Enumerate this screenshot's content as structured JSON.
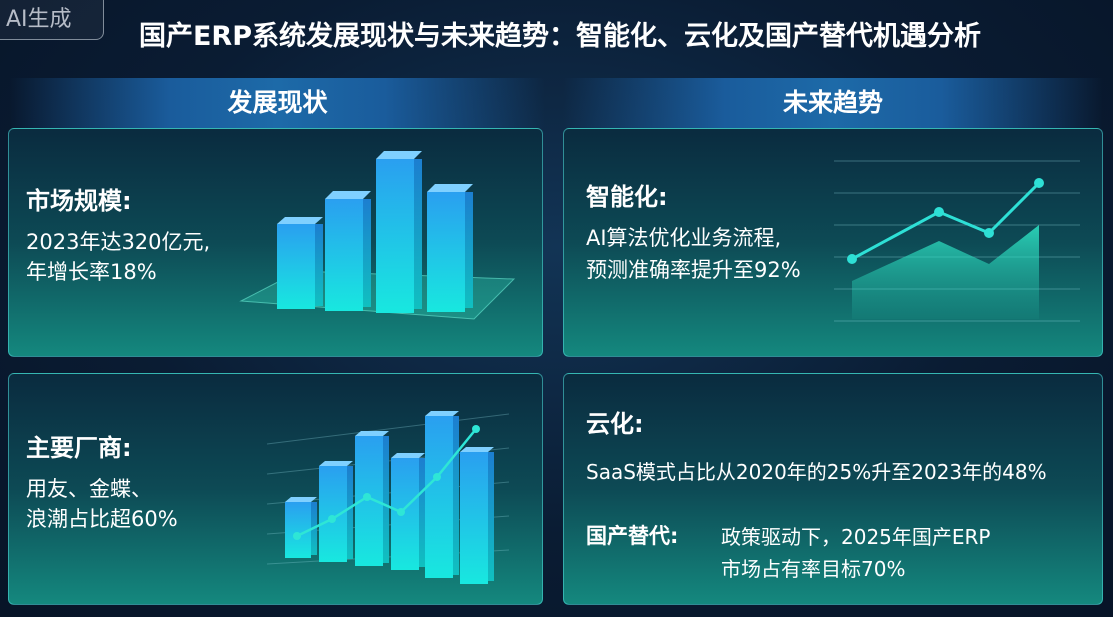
{
  "badge": "AI生成",
  "title": "国产ERP系统发展现状与未来趋势：智能化、云化及国产替代机遇分析",
  "sections": {
    "left": "发展现状",
    "right": "未来趋势"
  },
  "market": {
    "heading": "市场规模:",
    "line1": "2023年达320亿元,",
    "line2": "年增长率18%"
  },
  "vendors": {
    "heading": "主要厂商:",
    "line1": "用友、金蝶、",
    "line2": "浪潮占比超60%"
  },
  "intelligence": {
    "heading": "智能化:",
    "line1": "AI算法优化业务流程,",
    "line2": "预测准确率提升至92%"
  },
  "cloud": {
    "heading": "云化:",
    "line1": "SaaS模式占比从2020年的25%升至2023年的48%"
  },
  "localization": {
    "heading": "国产替代:",
    "line1": "政策驱动下，2025年国产ERP",
    "line2": "市场占有率目标70%"
  },
  "colors": {
    "accent": "#2ee6d6",
    "bar_top": "#2fa8f0",
    "bar_bottom": "#19e6e0",
    "background": "#0a1c33"
  }
}
